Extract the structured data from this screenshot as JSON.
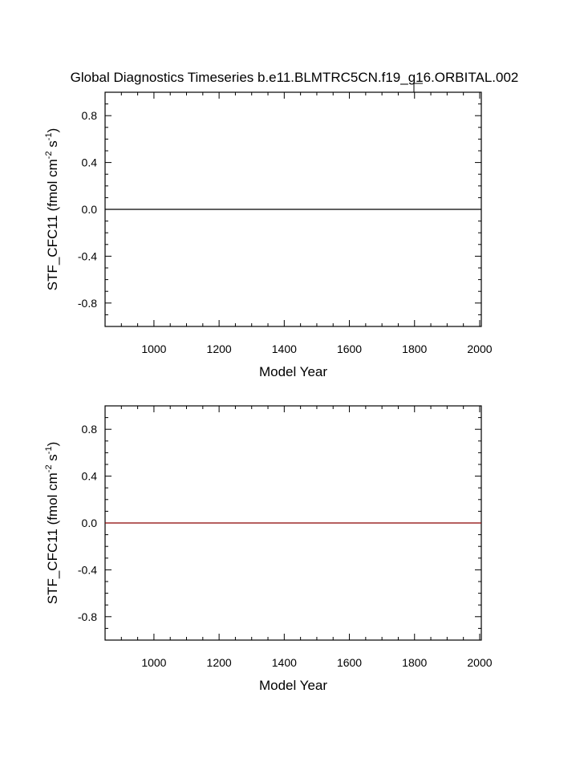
{
  "title": "Global Diagnostics Timeseries b.e11.BLMTRC5CN.f19_g16.ORBITAL.002",
  "chart_data": [
    {
      "type": "line",
      "ylabel": {
        "main": "STF_CFC11 (fmol cm",
        "exp1": "-2",
        "mid": " s",
        "exp2": "-1",
        "close": ")"
      },
      "xlabel": "Model Year",
      "xlim": [
        850,
        2005
      ],
      "ylim": [
        -1.0,
        1.0
      ],
      "xticks": [
        1000,
        1200,
        1400,
        1600,
        1800,
        2000
      ],
      "xtick_labels": [
        "1000",
        "1200",
        "1400",
        "1600",
        "1800",
        "2000"
      ],
      "yticks": [
        0.8,
        0.4,
        0.0,
        -0.4,
        -0.8
      ],
      "ytick_labels": [
        "0.8",
        "0.4",
        "0.0",
        "-0.4",
        "-0.8"
      ],
      "series": [
        {
          "x": [
            850,
            2005
          ],
          "y": [
            0.0,
            0.0
          ],
          "color": "#000000"
        }
      ],
      "grid": false
    },
    {
      "type": "line",
      "ylabel": {
        "main": "STF_CFC11 (fmol cm",
        "exp1": "-2",
        "mid": " s",
        "exp2": "-1",
        "close": ")"
      },
      "xlabel": "Model Year",
      "xlim": [
        850,
        2005
      ],
      "ylim": [
        -1.0,
        1.0
      ],
      "xticks": [
        1000,
        1200,
        1400,
        1600,
        1800,
        2000
      ],
      "xtick_labels": [
        "1000",
        "1200",
        "1400",
        "1600",
        "1800",
        "2000"
      ],
      "yticks": [
        0.8,
        0.4,
        0.0,
        -0.4,
        -0.8
      ],
      "ytick_labels": [
        "0.8",
        "0.4",
        "0.0",
        "-0.4",
        "-0.8"
      ],
      "series": [
        {
          "x": [
            850,
            2005
          ],
          "y": [
            0.0,
            0.0
          ],
          "color": "#8b0000"
        }
      ],
      "grid": false
    }
  ]
}
